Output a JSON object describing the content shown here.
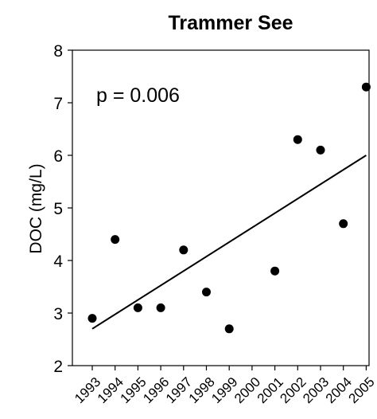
{
  "chart_data": {
    "type": "scatter",
    "title": "Trammer See",
    "xlabel": "",
    "ylabel": "DOC (mg/L)",
    "annotation": "p = 0.006",
    "x": [
      "1993",
      "1994",
      "1995",
      "1996",
      "1997",
      "1998",
      "1999",
      "2000",
      "2001",
      "2002",
      "2003",
      "2004",
      "2005"
    ],
    "points": [
      {
        "x": "1993",
        "y": 2.9
      },
      {
        "x": "1994",
        "y": 4.4
      },
      {
        "x": "1995",
        "y": 3.1
      },
      {
        "x": "1996",
        "y": 3.1
      },
      {
        "x": "1997",
        "y": 4.2
      },
      {
        "x": "1998",
        "y": 3.4
      },
      {
        "x": "1999",
        "y": 2.7
      },
      {
        "x": "2001",
        "y": 3.8
      },
      {
        "x": "2002",
        "y": 6.3
      },
      {
        "x": "2003",
        "y": 6.1
      },
      {
        "x": "2004",
        "y": 4.7
      },
      {
        "x": "2005",
        "y": 7.3
      }
    ],
    "trendline": {
      "x_start": "1993",
      "y_start": 2.7,
      "x_end": "2005",
      "y_end": 6.0
    },
    "ylim": [
      2,
      8
    ],
    "yticks": [
      2,
      3,
      4,
      5,
      6,
      7,
      8
    ],
    "grid": false,
    "legend": "none",
    "colors": {
      "points": "#000000",
      "line": "#000000",
      "axes": "#000000"
    }
  }
}
